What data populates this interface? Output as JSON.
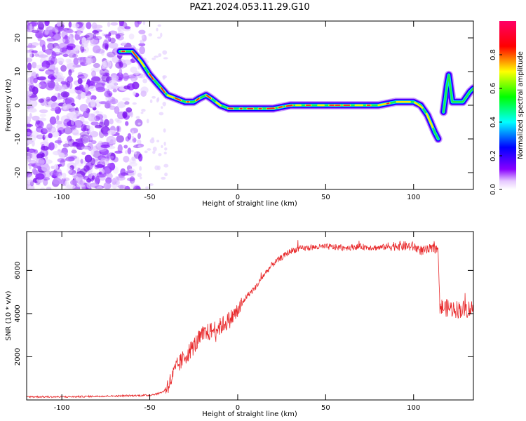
{
  "title": "PAZ1.2024.053.11.29.G10",
  "chart_data": [
    {
      "type": "heatmap",
      "xlabel": "Height of straight line (km)",
      "ylabel": "Frequency (Hz)",
      "xlim": [
        -120,
        134
      ],
      "ylim": [
        -25,
        25
      ],
      "x_ticks": [
        "-100",
        "-50",
        "0",
        "50",
        "100"
      ],
      "y_ticks": [
        "-20",
        "-10",
        "0",
        "10",
        "20"
      ],
      "colorbar": {
        "label": "Normalized spectral amplitude",
        "range": [
          0,
          1
        ],
        "ticks": [
          "0.0",
          "0.2",
          "0.4",
          "0.6",
          "0.8"
        ],
        "colormap": [
          "#ffffff",
          "#8800ff",
          "#0000ff",
          "#00ffff",
          "#00ff00",
          "#ffff00",
          "#ff0000",
          "#ff0066"
        ]
      },
      "ridge": {
        "x": [
          -67,
          -60,
          -55,
          -50,
          -45,
          -40,
          -35,
          -30,
          -25,
          -22,
          -18,
          -15,
          -10,
          -5,
          0,
          10,
          20,
          30,
          40,
          50,
          60,
          70,
          80,
          90,
          100,
          104,
          108,
          112,
          114
        ],
        "y": [
          16,
          16,
          13,
          9,
          6,
          3,
          2,
          1,
          1,
          2,
          3,
          2,
          0,
          -1,
          -1,
          -1,
          -1,
          0,
          0,
          0,
          0,
          0,
          0,
          1,
          1,
          0,
          -3,
          -8,
          -10
        ]
      },
      "noise_region": [
        -120,
        -65
      ],
      "secondary_ridge": {
        "x": [
          117,
          118,
          119,
          120,
          121,
          122,
          124,
          128,
          132,
          134
        ],
        "y": [
          -2,
          2,
          6,
          9,
          5,
          1,
          1,
          1,
          4,
          5
        ]
      }
    },
    {
      "type": "line",
      "xlabel": "Height of straight line (km)",
      "ylabel": "SNR (10 * v/v)",
      "xlim": [
        -120,
        134
      ],
      "ylim": [
        0,
        7800
      ],
      "x_ticks": [
        "-100",
        "-50",
        "0",
        "50",
        "100"
      ],
      "y_ticks": [
        "2000",
        "4000",
        "6000"
      ],
      "color": "#e8282a",
      "series": [
        {
          "x": [
            -120,
            -100,
            -80,
            -60,
            -50,
            -45,
            -42,
            -38,
            -35,
            -30,
            -25,
            -20,
            -15,
            -10,
            -5,
            0,
            5,
            10,
            15,
            20,
            25,
            30,
            35,
            40,
            50,
            60,
            70,
            80,
            90,
            100,
            105,
            113,
            114,
            115,
            120,
            125,
            130,
            134
          ],
          "y": [
            150,
            140,
            170,
            200,
            220,
            300,
            400,
            900,
            1500,
            2000,
            2500,
            3000,
            3200,
            3400,
            3700,
            4100,
            4800,
            5200,
            5800,
            6300,
            6600,
            6900,
            7000,
            7050,
            7100,
            7050,
            7100,
            7050,
            7150,
            7100,
            6900,
            7050,
            6800,
            4300,
            4250,
            4200,
            4200,
            4250
          ]
        }
      ]
    }
  ]
}
